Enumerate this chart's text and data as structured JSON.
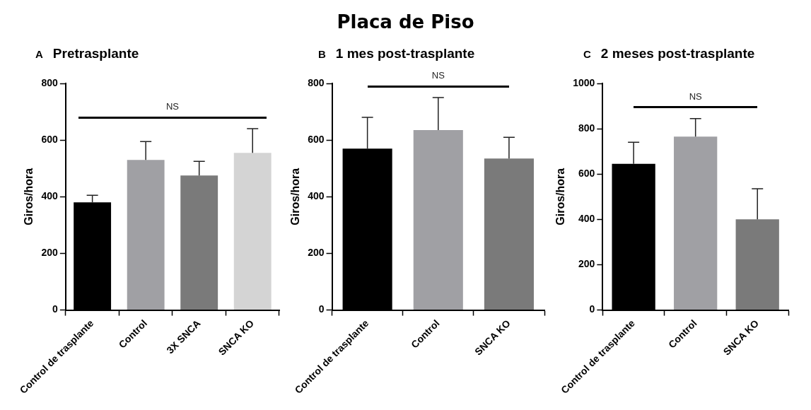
{
  "chart_data": [
    {
      "type": "bar",
      "title": "Pretrasplante",
      "ylabel": "Giros/hora",
      "annotations": [
        "Placa de Piso",
        "A",
        "NS"
      ],
      "categories": [
        "Control de trasplante",
        "Control",
        "3X SNCA",
        "SNCA KO"
      ],
      "values": [
        380,
        530,
        475,
        555
      ],
      "errors": [
        [
          380,
          405
        ],
        [
          530,
          595
        ],
        [
          475,
          525
        ],
        [
          555,
          640
        ]
      ],
      "colors": [
        "#000000",
        "#a0a0a4",
        "#7a7a7a",
        "#d4d4d4"
      ],
      "ylim": [
        0,
        800
      ],
      "yticks": [
        0,
        200,
        400,
        600,
        800
      ]
    },
    {
      "type": "bar",
      "title": "1 mes post-trasplante",
      "ylabel": "Giros/hora",
      "annotations": [
        "B",
        "NS"
      ],
      "categories": [
        "Control de trasplante",
        "Control",
        "SNCA KO"
      ],
      "values": [
        570,
        635,
        535
      ],
      "errors": [
        [
          570,
          680
        ],
        [
          635,
          750
        ],
        [
          535,
          610
        ]
      ],
      "colors": [
        "#000000",
        "#a0a0a4",
        "#7a7a7a"
      ],
      "ylim": [
        0,
        800
      ],
      "yticks": [
        0,
        200,
        400,
        600,
        800
      ]
    },
    {
      "type": "bar",
      "title": "2 meses post-trasplante",
      "ylabel": "Giros/hora",
      "annotations": [
        "C",
        "NS"
      ],
      "categories": [
        "Control de trasplante",
        "Control",
        "SNCA KO"
      ],
      "values": [
        645,
        765,
        400
      ],
      "errors": [
        [
          645,
          740
        ],
        [
          765,
          845
        ],
        [
          400,
          535
        ]
      ],
      "colors": [
        "#000000",
        "#a0a0a4",
        "#7a7a7a"
      ],
      "ylim": [
        0,
        1000
      ],
      "yticks": [
        0,
        200,
        400,
        600,
        800,
        1000
      ]
    }
  ]
}
